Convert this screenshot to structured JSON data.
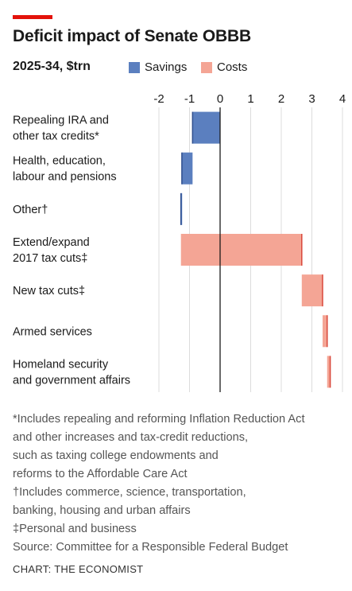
{
  "header": {
    "title": "Deficit impact of Senate OBBB",
    "subtitle": "2025-34, $trn"
  },
  "legend": {
    "savings_label": "Savings",
    "costs_label": "Costs"
  },
  "colors": {
    "accent": "#e3120b",
    "savings": "#5b7fbf",
    "costs": "#f4a595",
    "costs_edge": "#d9473a",
    "savings_edge": "#2f4f8f"
  },
  "chart_data": {
    "type": "bar",
    "subtype": "waterfall",
    "orientation": "horizontal",
    "title": "Deficit impact of Senate OBBB",
    "subtitle": "2025-34, $trn",
    "xlim": [
      -2,
      4
    ],
    "x_ticks": [
      "-2",
      "-1",
      "0",
      "1",
      "2",
      "3",
      "4"
    ],
    "grid": true,
    "legend_position": "top",
    "categories": [
      [
        "Repealing IRA and",
        "other tax credits*"
      ],
      [
        "Health, education,",
        "labour and pensions"
      ],
      [
        "Other†"
      ],
      [
        "Extend/expand",
        "2017 tax cuts‡"
      ],
      [
        "New tax cuts‡"
      ],
      [
        "Armed services"
      ],
      [
        "Homeland security",
        "and government affairs"
      ]
    ],
    "bars": [
      {
        "type": "savings",
        "start": 0.0,
        "end": -0.9
      },
      {
        "type": "savings",
        "start": -0.9,
        "end": -1.25
      },
      {
        "type": "savings",
        "start": -1.25,
        "end": -1.28
      },
      {
        "type": "costs",
        "start": -1.28,
        "end": 2.67
      },
      {
        "type": "costs",
        "start": 2.67,
        "end": 3.35
      },
      {
        "type": "costs",
        "start": 3.35,
        "end": 3.5
      },
      {
        "type": "costs",
        "start": 3.5,
        "end": 3.6
      }
    ]
  },
  "footnotes": [
    "*Includes repealing and reforming Inflation Reduction Act",
    "and other increases and tax-credit reductions,",
    "such as taxing college endowments and",
    "reforms to the Affordable Care Act",
    "†Includes commerce, science, transportation,",
    "banking, housing and urban affairs",
    "‡Personal and business",
    "Source: Committee for a Responsible Federal Budget"
  ],
  "credit": "CHART: THE ECONOMIST"
}
